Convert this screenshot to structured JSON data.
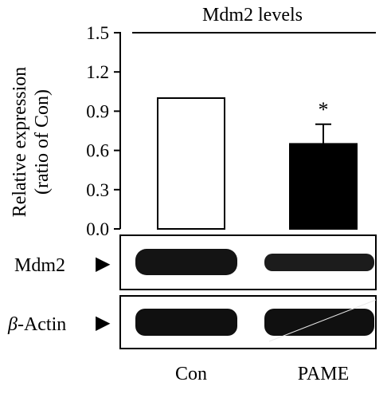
{
  "chart_data": {
    "type": "bar",
    "title": "Mdm2 levels",
    "ylabel_line1": "Relative expression",
    "ylabel_line2": "(ratio of Con)",
    "ylim": [
      0,
      1.5
    ],
    "yticks": [
      "0.0",
      "0.3",
      "0.6",
      "0.9",
      "1.2",
      "1.5"
    ],
    "categories": [
      "Con",
      "PAME"
    ],
    "values": [
      1.0,
      0.65
    ],
    "errors": [
      0,
      0.15
    ],
    "fills": [
      "#ffffff",
      "#000000"
    ],
    "significance": [
      "",
      "*"
    ],
    "grid": false
  },
  "blot": {
    "rows": [
      {
        "label_prefix": "",
        "label_italic": "",
        "label": "Mdm2",
        "arrow": "▶"
      },
      {
        "label_prefix": "",
        "label_italic": "β",
        "label": "-Actin",
        "arrow": "▶"
      }
    ]
  }
}
